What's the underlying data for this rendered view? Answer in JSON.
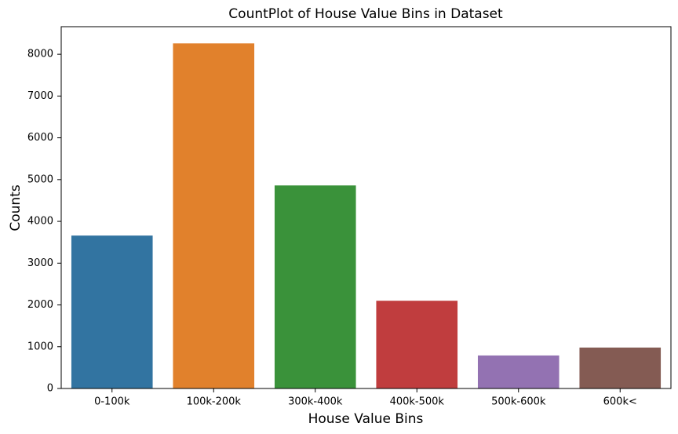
{
  "chart_data": {
    "type": "bar",
    "title": "CountPlot of House Value Bins in Dataset",
    "x_label": "House Value Bins",
    "y_label": "Counts",
    "categories": [
      "0-100k",
      "100k-200k",
      "300k-400k",
      "400k-500k",
      "500k-600k",
      "600k<"
    ],
    "values": [
      3660,
      8260,
      4860,
      2100,
      790,
      980
    ],
    "colors": [
      "#3274a1",
      "#e1812c",
      "#3a923a",
      "#c03d3e",
      "#9372b2",
      "#845b53"
    ],
    "ylim": [
      0,
      8660
    ],
    "yticks": [
      0,
      1000,
      2000,
      3000,
      4000,
      5000,
      6000,
      7000,
      8000
    ],
    "grid": false
  }
}
